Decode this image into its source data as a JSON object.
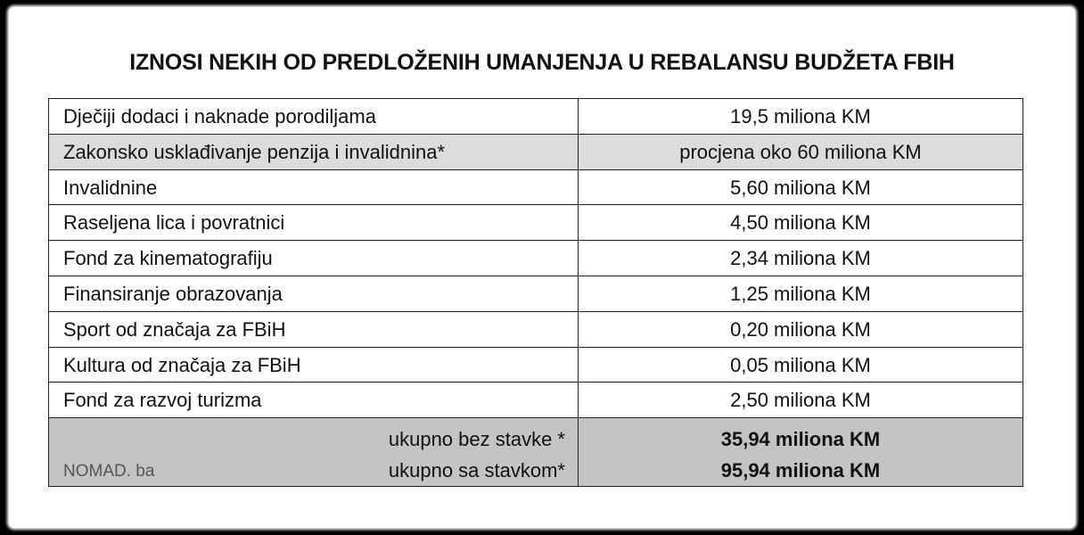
{
  "title": "IZNOSI NEKIH OD PREDLOŽENIH UMANJENJA U REBALANSU BUDŽETA FBIH",
  "table": {
    "rows": [
      [
        "Dječiji dodaci i naknade porodiljama",
        "19,5 miliona KM"
      ],
      [
        "Zakonsko usklađivanje penzija i invalidnina*",
        "procjena oko 60 miliona KM"
      ],
      [
        "Invalidnine",
        "5,60 miliona KM"
      ],
      [
        "Raseljena lica i povratnici",
        "4,50 miliona KM"
      ],
      [
        "Fond za kinematografiju",
        "2,34 miliona KM"
      ],
      [
        "Finansiranje obrazovanja",
        "1,25 miliona KM"
      ],
      [
        "Sport od značaja za FBiH",
        "0,20 miliona KM"
      ],
      [
        "Kultura od značaja za FBiH",
        "0,05 miliona KM"
      ],
      [
        "Fond za razvoj turizma",
        "2,50 miliona KM"
      ]
    ],
    "totals": [
      [
        "ukupno bez stavke *",
        "35,94 miliona KM"
      ],
      [
        "ukupno sa stavkom*",
        "95,94 miliona KM"
      ]
    ]
  },
  "watermark": "NOMAD. ba"
}
